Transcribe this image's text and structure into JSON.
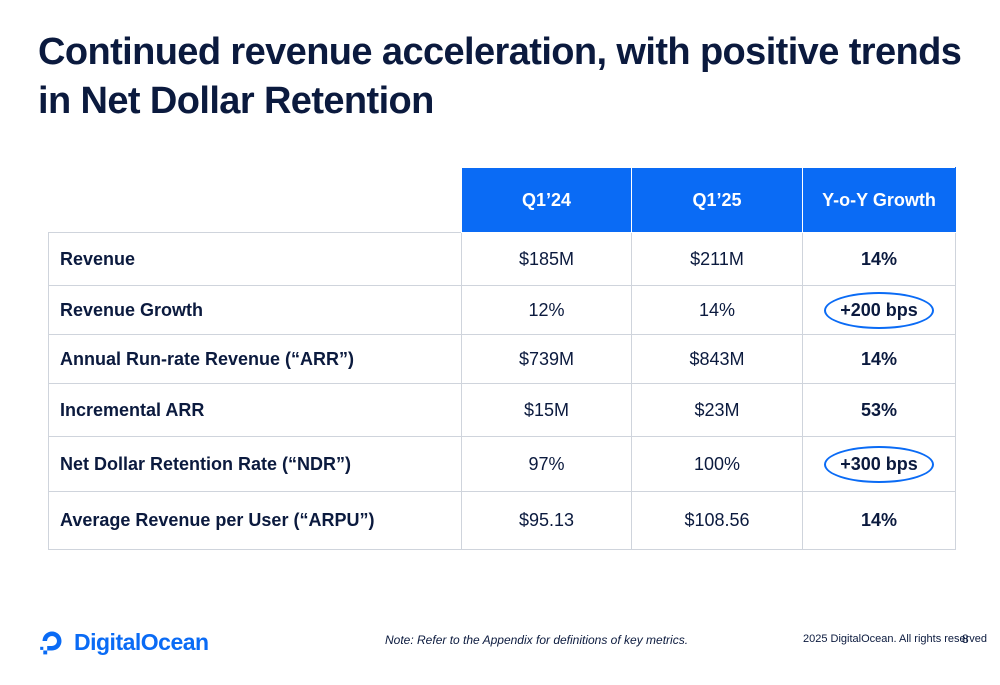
{
  "slide": {
    "title": "Continued revenue acceleration, with positive trends in Net Dollar Retention"
  },
  "table": {
    "headers": [
      "Q1’24",
      "Q1’25",
      "Y-o-Y Growth"
    ],
    "rows": [
      {
        "label": "Revenue",
        "q1_24": "$185M",
        "q1_25": "$211M",
        "yoy": "14%",
        "circled": false
      },
      {
        "label": "Revenue Growth",
        "q1_24": "12%",
        "q1_25": "14%",
        "yoy": "+200 bps",
        "circled": true
      },
      {
        "label": "Annual Run-rate Revenue (“ARR”)",
        "q1_24": "$739M",
        "q1_25": "$843M",
        "yoy": "14%",
        "circled": false
      },
      {
        "label": "Incremental ARR",
        "q1_24": "$15M",
        "q1_25": "$23M",
        "yoy": "53%",
        "circled": false
      },
      {
        "label": "Net Dollar Retention Rate (“NDR”)",
        "q1_24": "97%",
        "q1_25": "100%",
        "yoy": "+300 bps",
        "circled": true
      },
      {
        "label": "Average Revenue per User (“ARPU”)",
        "q1_24": "$95.13",
        "q1_25": "$108.56",
        "yoy": "14%",
        "circled": false
      }
    ]
  },
  "footer": {
    "logo_text": "DigitalOcean",
    "note": "Note: Refer to the Appendix for definitions of key metrics.",
    "copyright": "2025 DigitalOcean. All rights reserved",
    "page_number": "8"
  },
  "colors": {
    "brand_blue": "#0a6bf5",
    "navy_text": "#0b1a3e"
  }
}
